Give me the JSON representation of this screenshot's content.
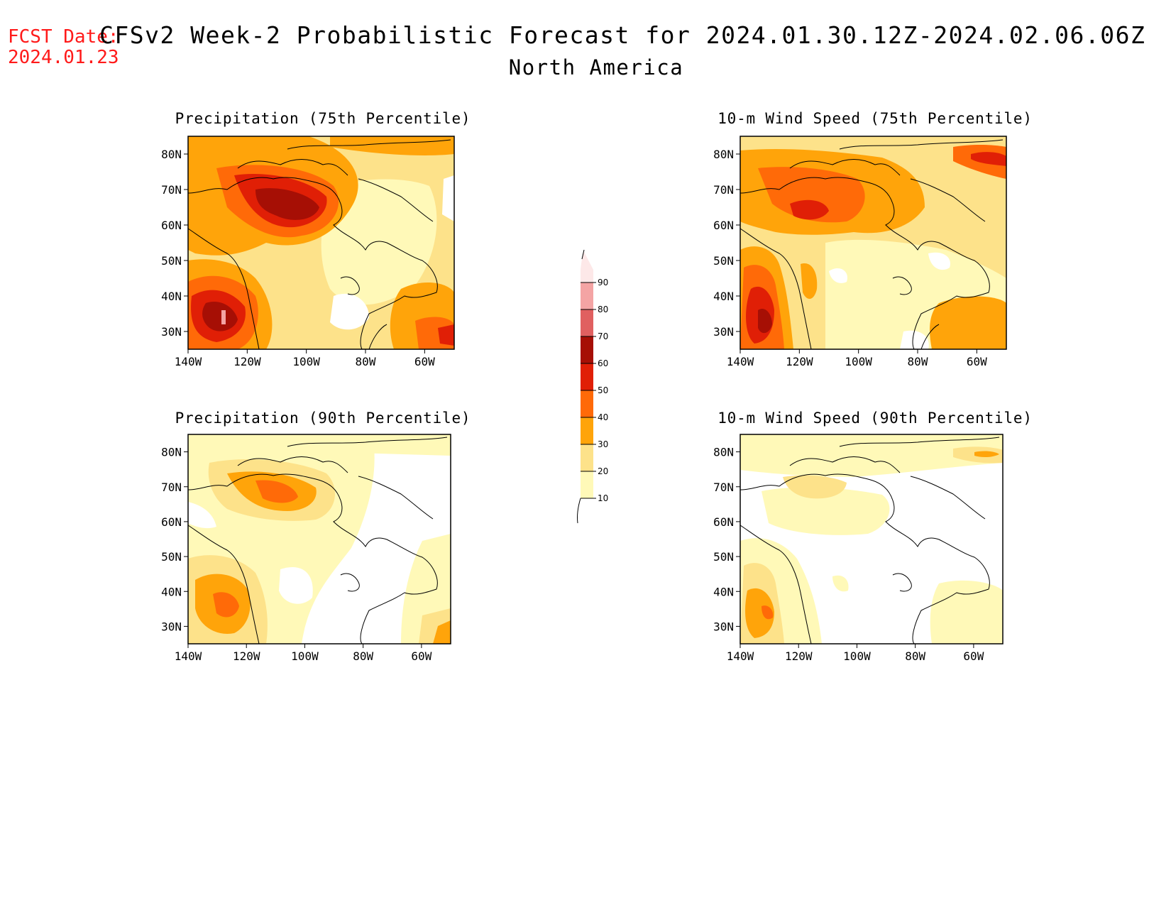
{
  "header": {
    "fcst_label": "FCST Date:",
    "fcst_date": "2024.01.23",
    "title": "CFSv2 Week-2 Probabilistic Forecast for 2024.01.30.12Z-2024.02.06.06Z",
    "subtitle": "North America"
  },
  "axes": {
    "lat_ticks": [
      "30N",
      "40N",
      "50N",
      "60N",
      "70N",
      "80N"
    ],
    "lon_ticks": [
      "140W",
      "120W",
      "100W",
      "80W",
      "60W"
    ]
  },
  "panels": [
    {
      "id": "precip75",
      "title": "Precipitation (75th Percentile)"
    },
    {
      "id": "wind75",
      "title": "10-m Wind Speed (75th Percentile)"
    },
    {
      "id": "precip90",
      "title": "Precipitation (90th Percentile)"
    },
    {
      "id": "wind90",
      "title": "10-m Wind Speed (90th Percentile)"
    }
  ],
  "colorbar": {
    "labels": [
      "10",
      "20",
      "30",
      "40",
      "50",
      "60",
      "70",
      "80",
      "90"
    ],
    "colors": [
      "#fff9b8",
      "#fde28a",
      "#ffa40a",
      "#ff6a08",
      "#e01f06",
      "#a60f05",
      "#e06060",
      "#f4a4a4",
      "#fde8e8"
    ]
  },
  "map": {
    "lon_range": [
      -140,
      -50
    ],
    "lat_range": [
      25,
      85
    ],
    "background_color": "#ffffff",
    "coastline_color": "#000000"
  }
}
